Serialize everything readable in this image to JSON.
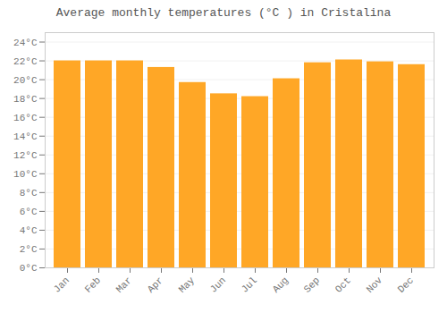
{
  "chart_data": {
    "type": "bar",
    "title": "Average monthly temperatures (°C ) in Cristalina",
    "categories": [
      "Jan",
      "Feb",
      "Mar",
      "Apr",
      "May",
      "Jun",
      "Jul",
      "Aug",
      "Sep",
      "Oct",
      "Nov",
      "Dec"
    ],
    "values": [
      22.0,
      22.0,
      22.0,
      21.3,
      19.7,
      18.5,
      18.2,
      20.1,
      21.8,
      22.1,
      21.9,
      21.6
    ],
    "color": "#FFA726",
    "ylim": [
      0,
      25
    ],
    "yticks": [
      {
        "value": 0,
        "label": "0°C"
      },
      {
        "value": 2,
        "label": "2°C"
      },
      {
        "value": 4,
        "label": "4°C"
      },
      {
        "value": 6,
        "label": "6°C"
      },
      {
        "value": 8,
        "label": "8°C"
      },
      {
        "value": 10,
        "label": "10°C"
      },
      {
        "value": 12,
        "label": "12°C"
      },
      {
        "value": 14,
        "label": "14°C"
      },
      {
        "value": 16,
        "label": "16°C"
      },
      {
        "value": 18,
        "label": "18°C"
      },
      {
        "value": 20,
        "label": "20°C"
      },
      {
        "value": 22,
        "label": "22°C"
      },
      {
        "value": 24,
        "label": "24°C"
      }
    ],
    "grid": true
  }
}
